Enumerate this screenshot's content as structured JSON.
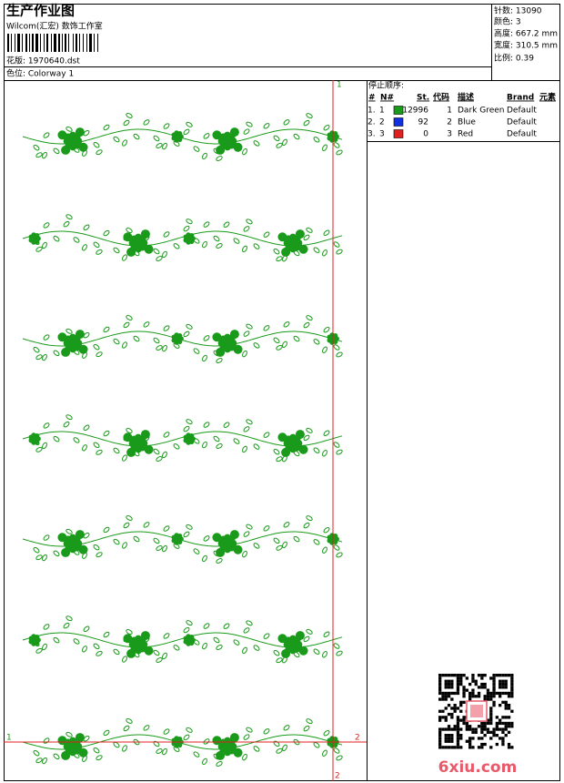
{
  "header": {
    "title": "生产作业图",
    "company": "Wilcom(汇宏) 数饰工作室",
    "design": "花版: 1970640.dst",
    "colorway": "色位: Colorway 1"
  },
  "info": [
    "针数: 13090",
    "颜色: 3",
    "高度: 667.2 mm",
    "宽度: 310.5 mm",
    "比例: 0.39"
  ],
  "stop_sequence": {
    "title": "停止顺序:",
    "columns": [
      "#",
      "N#",
      "St.",
      "代码",
      "描述",
      "Brand",
      "元素"
    ],
    "rows": [
      {
        "index": "1.",
        "needle": "1",
        "color": "#1a9a1a",
        "stitches": "12996",
        "code": "1",
        "description": "Dark Green",
        "brand": "Default"
      },
      {
        "index": "2.",
        "needle": "2",
        "color": "#1030e0",
        "stitches": "92",
        "code": "2",
        "description": "Blue",
        "brand": "Default"
      },
      {
        "index": "3.",
        "needle": "3",
        "color": "#e02020",
        "stitches": "0",
        "code": "3",
        "description": "Red",
        "brand": "Default"
      }
    ]
  },
  "markers": {
    "top": "1",
    "bottom": "2",
    "left": "1",
    "right": "2"
  },
  "watermark": "6xiu.com"
}
